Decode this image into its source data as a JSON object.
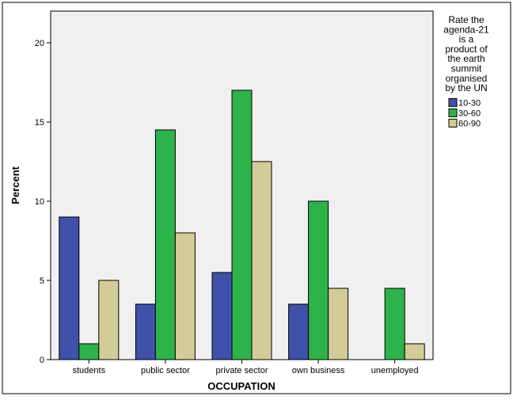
{
  "chart_data": {
    "type": "bar",
    "title": "",
    "xlabel": "OCCUPATION",
    "ylabel": "Percent",
    "ylim": [
      0,
      22
    ],
    "yticks": [
      0,
      5,
      10,
      15,
      20
    ],
    "categories": [
      "students",
      "public sector",
      "private sector",
      "own business",
      "unemployed"
    ],
    "series": [
      {
        "name": "10-30",
        "color": "#3F51A8",
        "values": [
          9.0,
          3.5,
          5.5,
          3.5,
          0
        ]
      },
      {
        "name": "30-60",
        "color": "#2DB34A",
        "values": [
          1.0,
          14.5,
          17.0,
          10.0,
          4.5
        ]
      },
      {
        "name": "60-90",
        "color": "#D4CC98",
        "values": [
          5.0,
          8.0,
          12.5,
          4.5,
          1.0
        ]
      }
    ],
    "legend": {
      "title_lines": [
        "Rate the",
        "agenda-21",
        "is a",
        "product of",
        "the earth",
        "summit",
        "organised",
        "by the UN"
      ],
      "placement": "right"
    },
    "grid": false,
    "plot_background": "#F0F0F0"
  }
}
